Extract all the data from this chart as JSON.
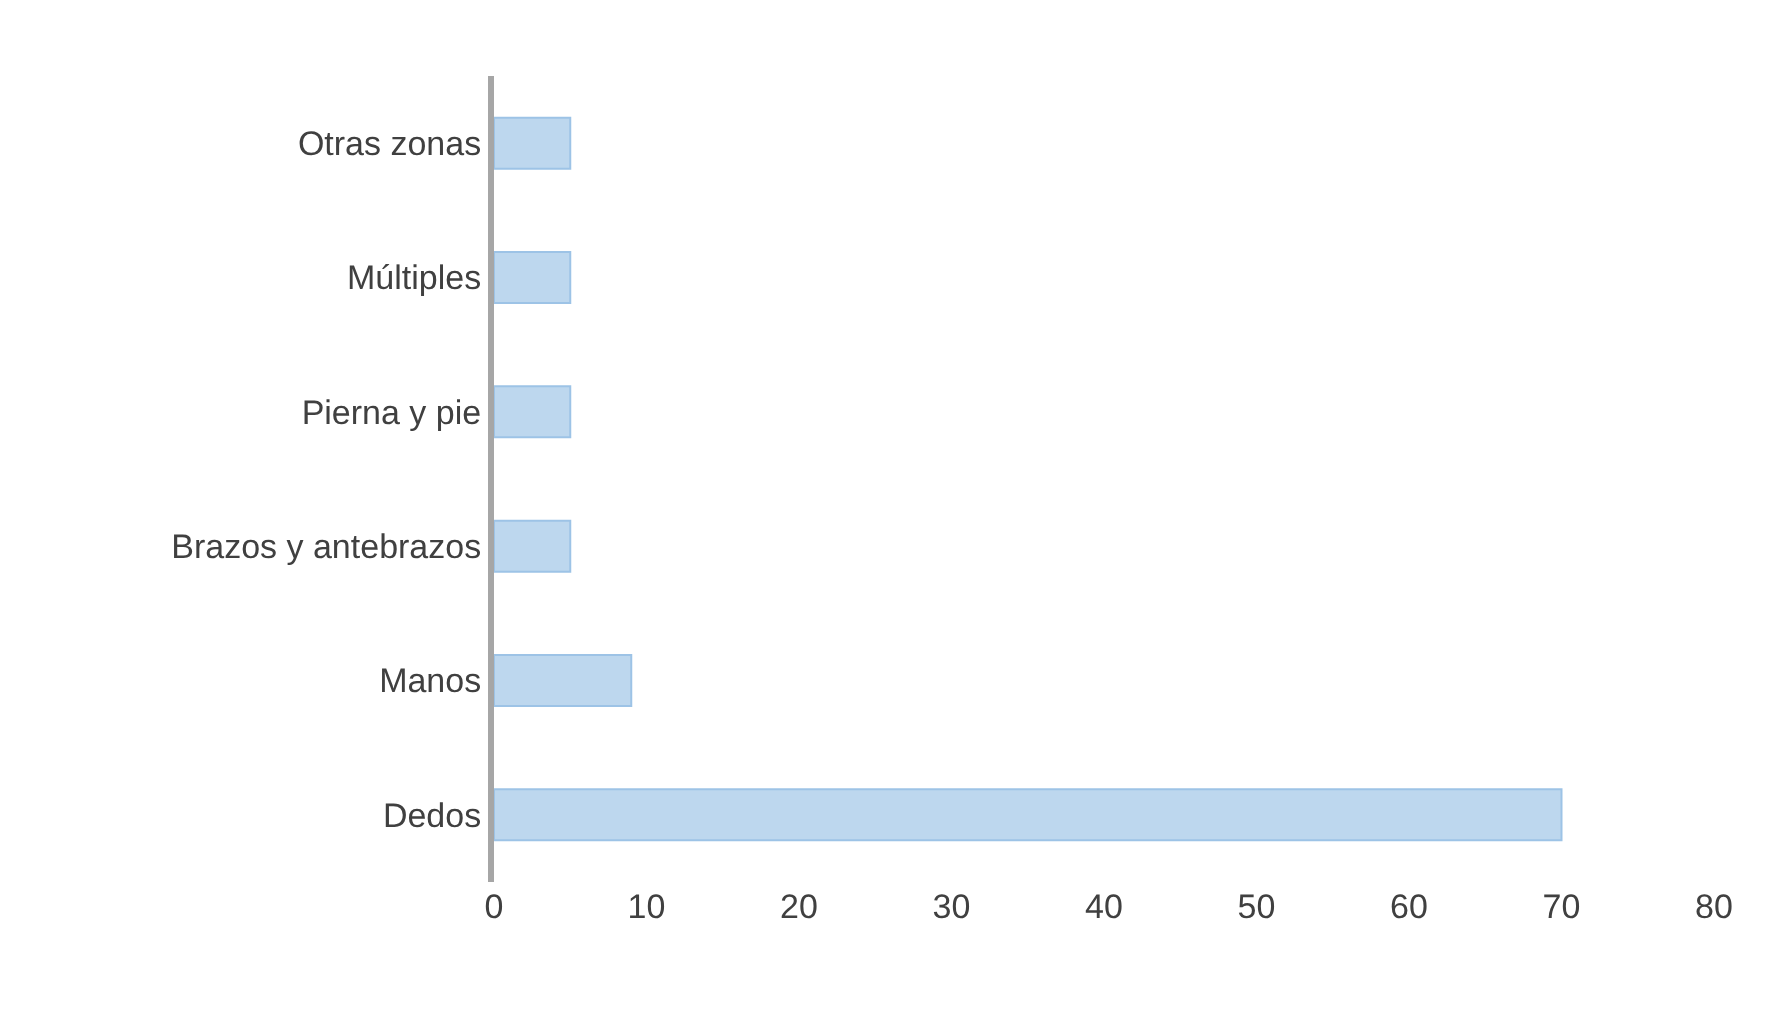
{
  "chart_data": {
    "type": "bar",
    "orientation": "horizontal",
    "categories": [
      "Otras zonas",
      "Múltiples",
      "Pierna y pie",
      "Brazos y antebrazos",
      "Manos",
      "Dedos"
    ],
    "values": [
      5,
      5,
      5,
      5,
      9,
      70
    ],
    "color": "#bdd7ee",
    "xlim": [
      0,
      80
    ],
    "xticks": [
      0,
      10,
      20,
      30,
      40,
      50,
      60,
      70,
      80
    ],
    "legend": false
  }
}
